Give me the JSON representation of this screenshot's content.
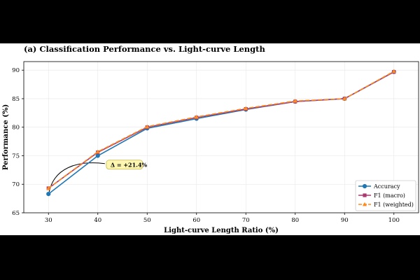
{
  "chart_data": {
    "type": "line",
    "title": "(a) Classification Performance vs. Light-curve Length",
    "xlabel": "Light-curve Length Ratio (%)",
    "ylabel": "Performance (%)",
    "x": [
      30,
      40,
      50,
      60,
      70,
      80,
      90,
      100
    ],
    "xlim": [
      25,
      105
    ],
    "ylim": [
      65,
      91.5
    ],
    "xticks": [
      "30",
      "40",
      "50",
      "60",
      "70",
      "80",
      "90",
      "100"
    ],
    "yticks": [
      "65",
      "70",
      "75",
      "80",
      "85",
      "90"
    ],
    "grid": true,
    "legend_position": "bottom-right",
    "series": [
      {
        "name": "Accuracy",
        "color": "#1f77b4",
        "marker": "circle",
        "line_style": "solid",
        "values": [
          68.3,
          75.0,
          79.8,
          81.5,
          83.1,
          84.5,
          85.0,
          89.7
        ]
      },
      {
        "name": "F1 (macro)",
        "color": "#a83a6e",
        "marker": "square",
        "line_style": "solid",
        "values": [
          69.3,
          75.6,
          80.0,
          81.7,
          83.2,
          84.5,
          85.0,
          89.7
        ]
      },
      {
        "name": "F1 (weighted)",
        "color": "#ff8a1e",
        "marker": "triangle",
        "line_style": "dashed",
        "values": [
          69.3,
          75.7,
          80.1,
          81.8,
          83.3,
          84.6,
          85.0,
          89.8
        ]
      }
    ],
    "annotation": {
      "text": "Δ = +21.4%",
      "x": 30,
      "y": 68.3,
      "text_x": 42,
      "text_y": 73.5,
      "box_color": "#fdf6b0"
    }
  }
}
